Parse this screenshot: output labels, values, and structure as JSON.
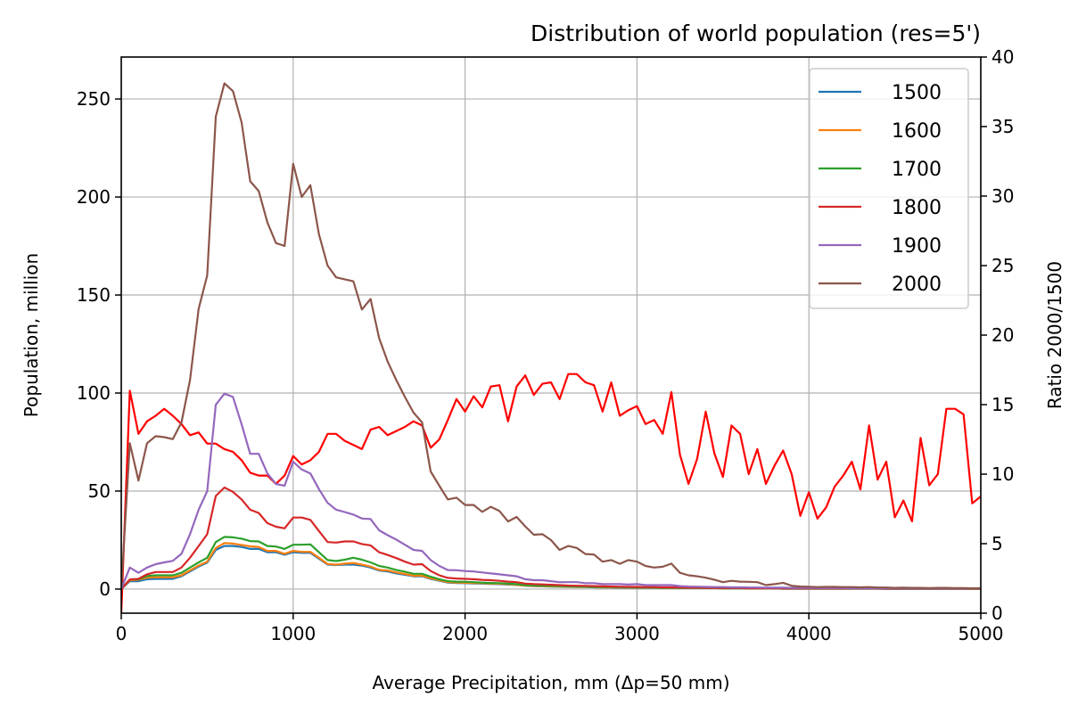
{
  "chart_data": {
    "type": "line",
    "title": "Distribution of world population (res=5')",
    "xlabel": "Average Precipitation, mm (Δp=50 mm)",
    "ylabel": "Population, million",
    "ylabel_right": "Ratio 2000/1500",
    "xlim": [
      0,
      5000
    ],
    "ylim": [
      -12.3,
      271.4
    ],
    "ylim_right": [
      0,
      40
    ],
    "x_ticks": [
      "0",
      "1000",
      "2000",
      "3000",
      "4000",
      "5000"
    ],
    "y_ticks": [
      "0",
      "50",
      "100",
      "150",
      "200",
      "250"
    ],
    "y_ticks_right": [
      "0",
      "5",
      "10",
      "15",
      "20",
      "25",
      "30",
      "35",
      "40"
    ],
    "grid": true,
    "legend_position": "top-right",
    "x_start": 0,
    "x_step": 50,
    "series": [
      {
        "name": "1500",
        "color": "#1f77b4",
        "axis": "left",
        "values": [
          0,
          4,
          4,
          5,
          5.2,
          5.2,
          5.2,
          6.5,
          9,
          11.5,
          13.5,
          20,
          22,
          22,
          21.5,
          20.5,
          20.5,
          18.8,
          18.8,
          17.5,
          18.8,
          18.5,
          18.5,
          15.5,
          12.5,
          12.3,
          12.5,
          12.5,
          12,
          11,
          9.5,
          9,
          8,
          7.3,
          6.5,
          6.5,
          5.2,
          4.3,
          3.3,
          3.1,
          3,
          2.9,
          2.8,
          2.6,
          2.5,
          2.3,
          2.1,
          1.7,
          1.5,
          1.4,
          1.3,
          1.2,
          1.1,
          1,
          1,
          0.9,
          0.8,
          0.8,
          0.7,
          0.7,
          0.6,
          0.6,
          0.6,
          0.5,
          0.5,
          0.6,
          0.6,
          0.5,
          0.5,
          0.5,
          0.4,
          0.4,
          0.4,
          0.3,
          0.3,
          0.3,
          0.3,
          0.2,
          0.2,
          0.2,
          0.2,
          0.2,
          0.2,
          0.2,
          0.2,
          0.2,
          0.2,
          0.2,
          0.2,
          0.1,
          0.1,
          0.1,
          0.1,
          0.1,
          0.1,
          0.1,
          0.1,
          0.1,
          0.1,
          0.1,
          0.1
        ]
      },
      {
        "name": "1600",
        "color": "#ff7f0e",
        "axis": "left",
        "values": [
          0,
          4.5,
          4.7,
          5.8,
          6,
          6,
          6,
          7,
          9.5,
          12,
          14,
          21,
          23.5,
          23.2,
          22.5,
          21.8,
          21.5,
          19.5,
          19.5,
          18,
          19.5,
          19,
          19,
          16,
          12.8,
          12.5,
          13,
          13.3,
          12.5,
          11.5,
          9.8,
          9.5,
          8.5,
          7.7,
          6.8,
          6.8,
          5.5,
          4.5,
          3.5,
          3.3,
          3.2,
          3.1,
          3,
          2.8,
          2.7,
          2.5,
          2.2,
          1.8,
          1.6,
          1.5,
          1.4,
          1.3,
          1.2,
          1.1,
          1.1,
          1,
          0.9,
          0.9,
          0.8,
          0.8,
          0.7,
          0.7,
          0.7,
          0.6,
          0.6,
          0.6,
          0.6,
          0.5,
          0.5,
          0.5,
          0.4,
          0.4,
          0.4,
          0.3,
          0.3,
          0.3,
          0.3,
          0.2,
          0.2,
          0.2,
          0.2,
          0.2,
          0.2,
          0.2,
          0.2,
          0.2,
          0.2,
          0.2,
          0.2,
          0.1,
          0.1,
          0.1,
          0.1,
          0.1,
          0.1,
          0.1,
          0.1,
          0.1,
          0.1,
          0.1,
          0.1
        ]
      },
      {
        "name": "1700",
        "color": "#2ca02c",
        "axis": "left",
        "values": [
          0,
          4.9,
          4.9,
          6.6,
          7,
          7,
          7,
          8.3,
          11,
          13.6,
          16,
          24,
          26.6,
          26.4,
          25.7,
          24.5,
          24.3,
          22,
          21.7,
          20.5,
          22.6,
          22.6,
          22.8,
          18.8,
          14.8,
          14.3,
          15,
          16,
          15,
          13.6,
          11.8,
          11,
          9.7,
          8.9,
          7.8,
          7.8,
          6.3,
          5,
          4,
          3.8,
          3.7,
          3.5,
          3.3,
          3.1,
          3,
          2.8,
          2.5,
          2,
          1.8,
          1.7,
          1.6,
          1.5,
          1.4,
          1.3,
          1.2,
          1.1,
          1,
          1,
          0.9,
          0.9,
          0.8,
          0.8,
          0.8,
          0.7,
          0.7,
          0.6,
          0.6,
          0.5,
          0.5,
          0.5,
          0.4,
          0.4,
          0.4,
          0.3,
          0.3,
          0.3,
          0.3,
          0.2,
          0.2,
          0.2,
          0.2,
          0.2,
          0.2,
          0.2,
          0.2,
          0.2,
          0.2,
          0.2,
          0.2,
          0.1,
          0.1,
          0.1,
          0.1,
          0.1,
          0.1,
          0.1,
          0.1,
          0.1,
          0.1,
          0.1,
          0.1
        ]
      },
      {
        "name": "1800",
        "color": "#d62728",
        "axis": "left",
        "values": [
          0,
          4.9,
          5.2,
          7.5,
          8.7,
          8.7,
          8.7,
          11,
          16,
          22,
          28,
          47.5,
          51.8,
          49.6,
          45.7,
          40.5,
          38.8,
          33.6,
          31.8,
          31,
          36.5,
          36.5,
          35.3,
          29.6,
          24,
          23.7,
          24.3,
          24.3,
          23,
          22.3,
          18.8,
          17.4,
          15.8,
          14,
          12.5,
          12.7,
          9.2,
          7,
          5.7,
          5.4,
          5.2,
          5,
          4.7,
          4.5,
          4.2,
          3.8,
          3.5,
          2.8,
          2.5,
          2.4,
          2.2,
          2,
          1.8,
          1.7,
          1.6,
          1.5,
          1.4,
          1.3,
          1.2,
          1.1,
          1.1,
          1,
          1,
          0.9,
          0.9,
          0.8,
          0.7,
          0.7,
          0.6,
          0.6,
          0.5,
          0.5,
          0.5,
          0.4,
          0.4,
          0.4,
          0.4,
          0.3,
          0.3,
          0.3,
          0.3,
          0.3,
          0.3,
          0.3,
          0.3,
          0.3,
          0.3,
          0.3,
          0.3,
          0.2,
          0.2,
          0.2,
          0.2,
          0.2,
          0.2,
          0.2,
          0.2,
          0.2,
          0.2,
          0.2,
          0.2
        ]
      },
      {
        "name": "1900",
        "color": "#9467bd",
        "axis": "left",
        "values": [
          0,
          11,
          8.3,
          11,
          12.7,
          13.6,
          14.4,
          18,
          28,
          40.5,
          50,
          94,
          99.7,
          98,
          84,
          69,
          69,
          59,
          53.6,
          52.7,
          65,
          61,
          59,
          51,
          44,
          40.5,
          39.3,
          38,
          36,
          35.7,
          30,
          27.5,
          25.2,
          22.6,
          20,
          19.5,
          14.8,
          11.8,
          9.7,
          9.6,
          9.2,
          9,
          8.5,
          8,
          7.5,
          7,
          6.5,
          5,
          4.5,
          4.5,
          4,
          3.5,
          3.5,
          3.5,
          3,
          3,
          2.5,
          2.5,
          2.5,
          2.3,
          2.5,
          2,
          2,
          2,
          2,
          1.5,
          1.3,
          1.2,
          1.1,
          1,
          1,
          0.9,
          0.9,
          0.8,
          0.8,
          0.7,
          0.7,
          0.7,
          0.6,
          0.6,
          0.6,
          0.5,
          0.5,
          0.5,
          0.5,
          0.4,
          0.4,
          0.4,
          0.4,
          0.4,
          0.3,
          0.3,
          0.3,
          0.3,
          0.3,
          0.3,
          0.3,
          0.3,
          0.3,
          0.3,
          0.3
        ]
      },
      {
        "name": "2000",
        "color": "#8c564b",
        "axis": "left",
        "values": [
          0,
          74.4,
          55.3,
          74.4,
          78,
          77.5,
          76.5,
          85,
          106.6,
          143,
          160,
          241,
          258,
          254,
          238,
          208,
          203,
          187,
          176.5,
          175,
          217,
          200,
          206,
          181,
          165,
          159,
          158,
          157,
          142.6,
          148,
          128,
          116,
          106.6,
          98,
          90,
          85,
          60,
          52.7,
          45.7,
          46.6,
          42.9,
          42.9,
          39.4,
          42,
          39.8,
          34.5,
          36.8,
          32,
          27.7,
          28,
          25,
          20,
          22,
          21,
          17.9,
          17.6,
          14,
          14.8,
          12.9,
          14.8,
          14,
          11.8,
          11,
          11.4,
          13,
          8.3,
          7,
          6.5,
          5.8,
          4.8,
          3.5,
          4.2,
          3.8,
          3.7,
          3.5,
          2,
          2.5,
          3.2,
          1.7,
          1.3,
          1.2,
          1,
          1.1,
          1.1,
          1,
          1,
          0.9,
          1,
          0.8,
          0.8,
          0.6,
          0.7,
          0.6,
          0.6,
          0.5,
          0.6,
          0.6,
          0.5,
          0.5,
          0.4,
          0.4
        ]
      },
      {
        "name": "",
        "color": "#ff0000",
        "axis": "right",
        "values": [
          0,
          16.0,
          12.9,
          13.8,
          14.2,
          14.7,
          14.2,
          13.6,
          12.8,
          13.0,
          12.2,
          12.2,
          11.8,
          11.6,
          11.0,
          10.1,
          9.9,
          9.9,
          9.3,
          9.9,
          11.3,
          10.7,
          11.0,
          11.6,
          12.9,
          12.9,
          12.4,
          12.1,
          11.8,
          13.2,
          13.4,
          12.8,
          13.1,
          13.4,
          13.8,
          13.5,
          11.9,
          12.5,
          13.9,
          15.4,
          14.5,
          15.6,
          14.8,
          16.3,
          16.4,
          13.8,
          16.3,
          17.1,
          15.7,
          16.5,
          16.6,
          15.4,
          17.2,
          17.2,
          16.6,
          16.4,
          14.5,
          16.6,
          14.2,
          14.6,
          14.9,
          13.6,
          13.9,
          12.9,
          15.9,
          11.4,
          9.3,
          11.1,
          14.5,
          11.5,
          9.8,
          13.5,
          12.9,
          10.0,
          11.8,
          9.3,
          10.6,
          11.7,
          10.0,
          7.0,
          8.7,
          6.8,
          7.6,
          9.1,
          9.9,
          10.9,
          8.9,
          13.5,
          9.6,
          10.9,
          6.9,
          8.1,
          6.6,
          12.6,
          9.2,
          10.0,
          14.7,
          14.7,
          14.3,
          7.9,
          8.4
        ]
      }
    ]
  }
}
